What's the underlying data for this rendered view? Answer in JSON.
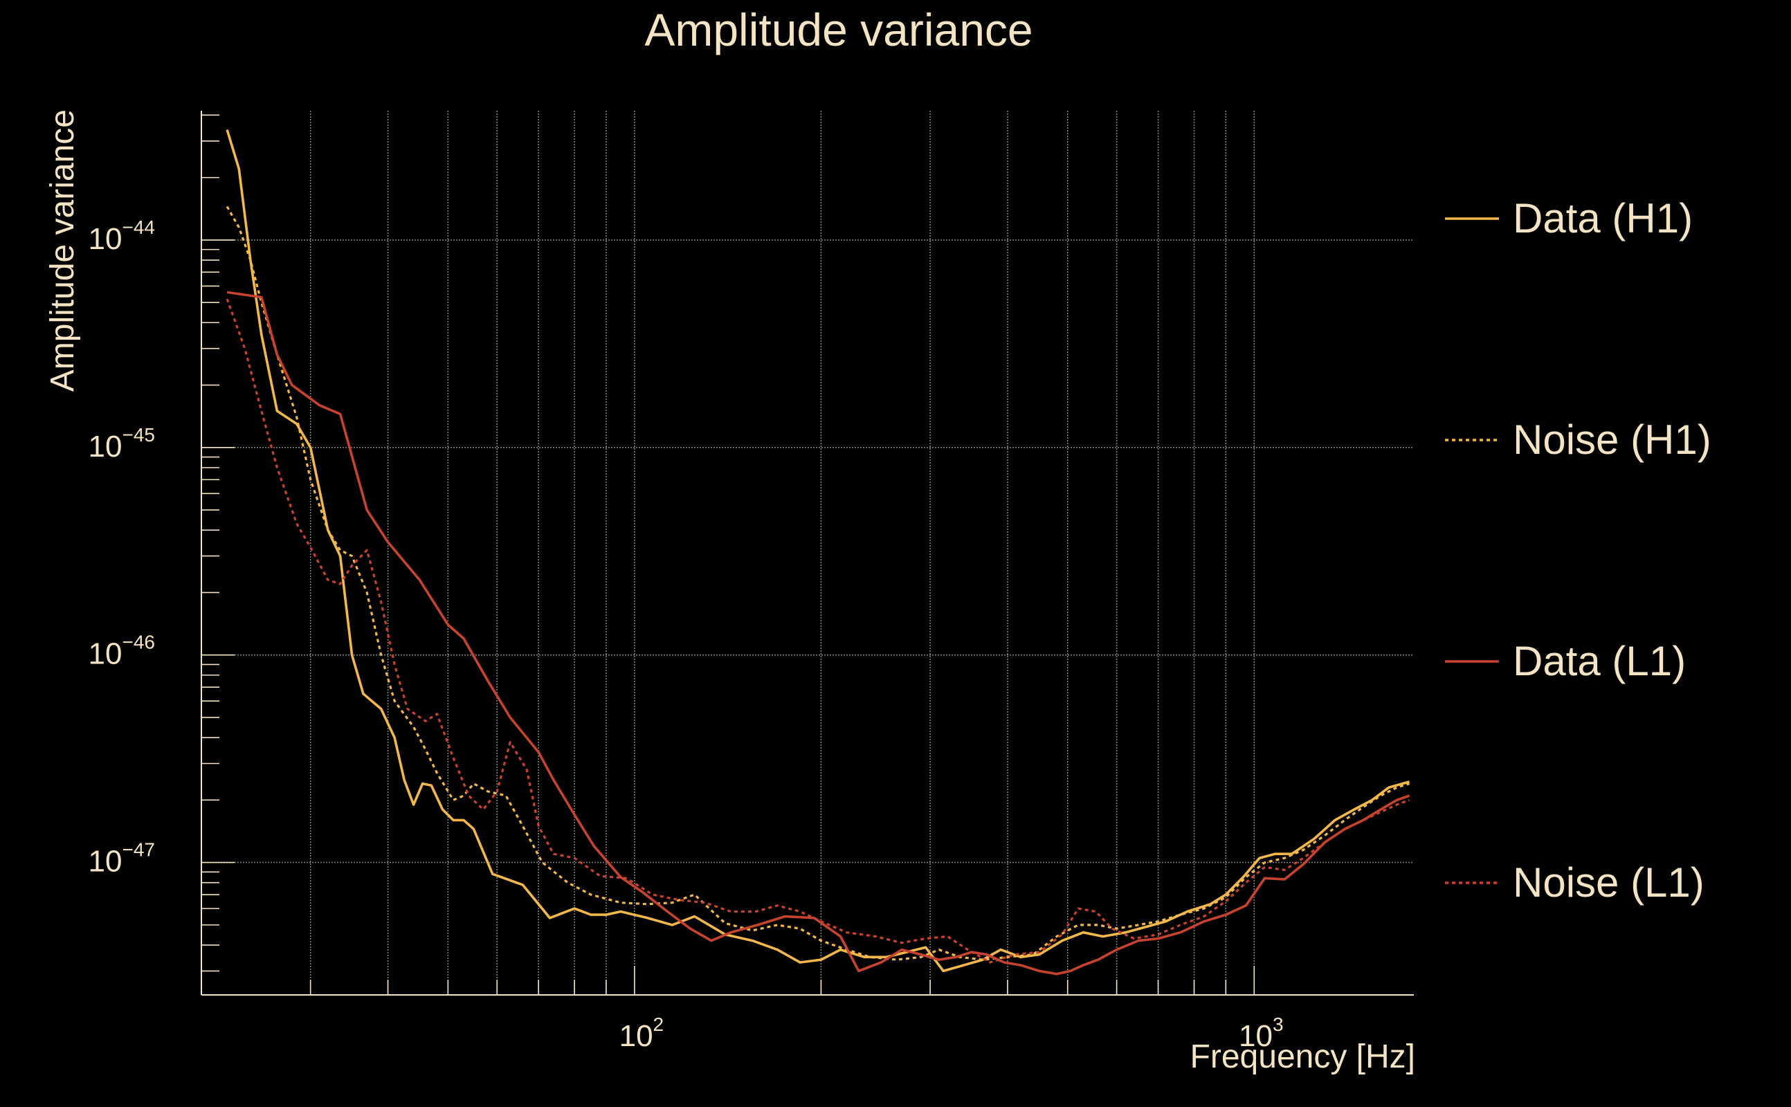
{
  "chart_data": {
    "type": "line",
    "title": "Amplitude variance",
    "xlabel": "Frequency [Hz]",
    "ylabel": "Amplitude variance",
    "xscale": "log",
    "yscale": "log",
    "xlim": [
      20,
      1810
    ],
    "ylim": [
      2.3e-48,
      4.2e-44
    ],
    "grid": true,
    "legend_position": "right",
    "colors": {
      "background": "#000000",
      "text": "#f4e4c4",
      "axis": "#f4e4c4",
      "grid": "#aaaaaa"
    },
    "x_ticks": [
      {
        "value": 100,
        "base": "10",
        "exp": "2"
      },
      {
        "value": 1000,
        "base": "10",
        "exp": "3"
      }
    ],
    "y_ticks": [
      {
        "value": 1e-44,
        "base": "10",
        "exp": "−44"
      },
      {
        "value": 1e-45,
        "base": "10",
        "exp": "−45"
      },
      {
        "value": 1e-46,
        "base": "10",
        "exp": "−46"
      },
      {
        "value": 1e-47,
        "base": "10",
        "exp": "−47"
      }
    ],
    "series": [
      {
        "name": "Data (H1)",
        "color": "#f2b84b",
        "dash": "solid",
        "points": [
          [
            22,
            3.4e-44
          ],
          [
            23,
            2.2e-44
          ],
          [
            24,
            8e-45
          ],
          [
            25,
            3.5e-45
          ],
          [
            26.5,
            1.5e-45
          ],
          [
            28.5,
            1.3e-45
          ],
          [
            30,
            1e-45
          ],
          [
            32,
            4e-46
          ],
          [
            33.5,
            3e-46
          ],
          [
            35,
            1e-46
          ],
          [
            36.5,
            6.5e-47
          ],
          [
            39,
            5.5e-47
          ],
          [
            41,
            4e-47
          ],
          [
            42.5,
            2.5e-47
          ],
          [
            44,
            1.9e-47
          ],
          [
            45.5,
            2.4e-47
          ],
          [
            47,
            2.35e-47
          ],
          [
            49,
            1.8e-47
          ],
          [
            51,
            1.6e-47
          ],
          [
            53,
            1.6e-47
          ],
          [
            55,
            1.45e-47
          ],
          [
            59,
            8.8e-48
          ],
          [
            66,
            7.8e-48
          ],
          [
            73,
            5.4e-48
          ],
          [
            80,
            6e-48
          ],
          [
            85,
            5.6e-48
          ],
          [
            90,
            5.6e-48
          ],
          [
            95,
            5.8e-48
          ],
          [
            105,
            5.4e-48
          ],
          [
            115,
            5e-48
          ],
          [
            125,
            5.5e-48
          ],
          [
            140,
            4.5e-48
          ],
          [
            155,
            4.2e-48
          ],
          [
            170,
            3.8e-48
          ],
          [
            185,
            3.3e-48
          ],
          [
            200,
            3.4e-48
          ],
          [
            215,
            3.8e-48
          ],
          [
            235,
            3.5e-48
          ],
          [
            255,
            3.5e-48
          ],
          [
            275,
            3.7e-48
          ],
          [
            295,
            3.9e-48
          ],
          [
            315,
            3e-48
          ],
          [
            340,
            3.2e-48
          ],
          [
            365,
            3.4e-48
          ],
          [
            390,
            3.8e-48
          ],
          [
            420,
            3.5e-48
          ],
          [
            450,
            3.6e-48
          ],
          [
            490,
            4.2e-48
          ],
          [
            530,
            4.6e-48
          ],
          [
            570,
            4.4e-48
          ],
          [
            620,
            4.6e-48
          ],
          [
            670,
            4.9e-48
          ],
          [
            720,
            5.2e-48
          ],
          [
            780,
            5.8e-48
          ],
          [
            850,
            6.3e-48
          ],
          [
            900,
            7e-48
          ],
          [
            960,
            8.5e-48
          ],
          [
            1020,
            1.05e-47
          ],
          [
            1080,
            1.1e-47
          ],
          [
            1150,
            1.1e-47
          ],
          [
            1250,
            1.3e-47
          ],
          [
            1350,
            1.6e-47
          ],
          [
            1450,
            1.8e-47
          ],
          [
            1550,
            2e-47
          ],
          [
            1650,
            2.3e-47
          ],
          [
            1780,
            2.45e-47
          ]
        ]
      },
      {
        "name": "Noise (H1)",
        "color": "#f2b84b",
        "dash": "dotted",
        "points": [
          [
            22,
            1.45e-44
          ],
          [
            23,
            1.15e-44
          ],
          [
            24,
            8e-45
          ],
          [
            25,
            5e-45
          ],
          [
            26.5,
            2.8e-45
          ],
          [
            28.5,
            1.4e-45
          ],
          [
            30,
            7e-46
          ],
          [
            32,
            4e-46
          ],
          [
            33.5,
            3.2e-46
          ],
          [
            35,
            3e-46
          ],
          [
            37,
            2e-46
          ],
          [
            39,
            1e-46
          ],
          [
            41,
            6e-47
          ],
          [
            44,
            4.5e-47
          ],
          [
            46,
            3.5e-47
          ],
          [
            48,
            2.7e-47
          ],
          [
            51,
            2e-47
          ],
          [
            53,
            2.1e-47
          ],
          [
            55,
            2.4e-47
          ],
          [
            58,
            2.2e-47
          ],
          [
            62,
            2.1e-47
          ],
          [
            66,
            1.5e-47
          ],
          [
            71,
            1e-47
          ],
          [
            78,
            8e-48
          ],
          [
            85,
            7e-48
          ],
          [
            95,
            6.4e-48
          ],
          [
            105,
            6.3e-48
          ],
          [
            115,
            6.4e-48
          ],
          [
            125,
            7e-48
          ],
          [
            140,
            5.1e-48
          ],
          [
            155,
            4.7e-48
          ],
          [
            170,
            5e-48
          ],
          [
            185,
            4.8e-48
          ],
          [
            200,
            4.2e-48
          ],
          [
            220,
            3.8e-48
          ],
          [
            240,
            3.5e-48
          ],
          [
            265,
            3.4e-48
          ],
          [
            290,
            3.5e-48
          ],
          [
            310,
            3.8e-48
          ],
          [
            335,
            3.5e-48
          ],
          [
            365,
            3.4e-48
          ],
          [
            400,
            3.5e-48
          ],
          [
            440,
            3.6e-48
          ],
          [
            480,
            4.4e-48
          ],
          [
            520,
            5e-48
          ],
          [
            560,
            5e-48
          ],
          [
            600,
            4.8e-48
          ],
          [
            650,
            5e-48
          ],
          [
            700,
            5.2e-48
          ],
          [
            760,
            5.6e-48
          ],
          [
            830,
            6e-48
          ],
          [
            900,
            6.8e-48
          ],
          [
            970,
            8.5e-48
          ],
          [
            1040,
            1e-47
          ],
          [
            1120,
            1.05e-47
          ],
          [
            1200,
            1.15e-47
          ],
          [
            1300,
            1.35e-47
          ],
          [
            1400,
            1.6e-47
          ],
          [
            1500,
            1.85e-47
          ],
          [
            1600,
            2.1e-47
          ],
          [
            1700,
            2.3e-47
          ],
          [
            1780,
            2.4e-47
          ]
        ]
      },
      {
        "name": "Data (L1)",
        "color": "#c84230",
        "dash": "solid",
        "points": [
          [
            22,
            5.6e-45
          ],
          [
            25,
            5.3e-45
          ],
          [
            26.5,
            2.8e-45
          ],
          [
            28,
            2e-45
          ],
          [
            31,
            1.6e-45
          ],
          [
            33.5,
            1.45e-45
          ],
          [
            37,
            5e-46
          ],
          [
            40,
            3.5e-46
          ],
          [
            45,
            2.3e-46
          ],
          [
            50,
            1.4e-46
          ],
          [
            53,
            1.2e-46
          ],
          [
            58,
            7.5e-47
          ],
          [
            63,
            5e-47
          ],
          [
            70,
            3.4e-47
          ],
          [
            74,
            2.5e-47
          ],
          [
            80,
            1.7e-47
          ],
          [
            86,
            1.2e-47
          ],
          [
            95,
            8.5e-48
          ],
          [
            103,
            7.2e-48
          ],
          [
            113,
            5.8e-48
          ],
          [
            123,
            4.8e-48
          ],
          [
            133,
            4.2e-48
          ],
          [
            143,
            4.6e-48
          ],
          [
            158,
            5e-48
          ],
          [
            175,
            5.5e-48
          ],
          [
            195,
            5.4e-48
          ],
          [
            215,
            4.4e-48
          ],
          [
            230,
            3e-48
          ],
          [
            250,
            3.3e-48
          ],
          [
            270,
            3.8e-48
          ],
          [
            290,
            3.6e-48
          ],
          [
            310,
            3.4e-48
          ],
          [
            330,
            3.5e-48
          ],
          [
            350,
            3.7e-48
          ],
          [
            370,
            3.6e-48
          ],
          [
            395,
            3.3e-48
          ],
          [
            420,
            3.2e-48
          ],
          [
            450,
            3e-48
          ],
          [
            480,
            2.9e-48
          ],
          [
            505,
            3e-48
          ],
          [
            530,
            3.2e-48
          ],
          [
            560,
            3.4e-48
          ],
          [
            600,
            3.8e-48
          ],
          [
            650,
            4.2e-48
          ],
          [
            700,
            4.3e-48
          ],
          [
            760,
            4.6e-48
          ],
          [
            830,
            5.2e-48
          ],
          [
            900,
            5.6e-48
          ],
          [
            970,
            6.2e-48
          ],
          [
            1040,
            8.4e-48
          ],
          [
            1120,
            8.3e-48
          ],
          [
            1200,
            9.8e-48
          ],
          [
            1300,
            1.25e-47
          ],
          [
            1400,
            1.45e-47
          ],
          [
            1500,
            1.6e-47
          ],
          [
            1600,
            1.8e-47
          ],
          [
            1700,
            2e-47
          ],
          [
            1780,
            2.1e-47
          ]
        ]
      },
      {
        "name": "Noise (L1)",
        "color": "#c84230",
        "dash": "dotted",
        "points": [
          [
            22,
            5.2e-45
          ],
          [
            23.5,
            3e-45
          ],
          [
            25,
            1.5e-45
          ],
          [
            26.5,
            8e-46
          ],
          [
            28.5,
            4.3e-46
          ],
          [
            30,
            3.3e-46
          ],
          [
            32,
            2.3e-46
          ],
          [
            33.5,
            2.2e-46
          ],
          [
            35,
            2.7e-46
          ],
          [
            37,
            3.2e-46
          ],
          [
            39,
            1.8e-46
          ],
          [
            41,
            9e-47
          ],
          [
            43,
            5.5e-47
          ],
          [
            46,
            4.8e-47
          ],
          [
            48,
            5.2e-47
          ],
          [
            51,
            3.2e-47
          ],
          [
            54,
            2.1e-47
          ],
          [
            57,
            1.8e-47
          ],
          [
            60,
            2.2e-47
          ],
          [
            63,
            3.8e-47
          ],
          [
            67,
            2.8e-47
          ],
          [
            70,
            1.5e-47
          ],
          [
            74,
            1.1e-47
          ],
          [
            80,
            1.05e-47
          ],
          [
            88,
            8.6e-48
          ],
          [
            97,
            8.4e-48
          ],
          [
            107,
            7e-48
          ],
          [
            118,
            6.6e-48
          ],
          [
            130,
            6.4e-48
          ],
          [
            143,
            5.8e-48
          ],
          [
            157,
            5.8e-48
          ],
          [
            170,
            6.2e-48
          ],
          [
            185,
            5.8e-48
          ],
          [
            200,
            5.2e-48
          ],
          [
            220,
            4.6e-48
          ],
          [
            245,
            4.4e-48
          ],
          [
            270,
            4.1e-48
          ],
          [
            295,
            4.3e-48
          ],
          [
            320,
            4.4e-48
          ],
          [
            345,
            3.8e-48
          ],
          [
            375,
            3.3e-48
          ],
          [
            410,
            3.6e-48
          ],
          [
            450,
            3.7e-48
          ],
          [
            490,
            4.5e-48
          ],
          [
            520,
            6e-48
          ],
          [
            555,
            5.8e-48
          ],
          [
            590,
            4.8e-48
          ],
          [
            640,
            4.3e-48
          ],
          [
            700,
            4.5e-48
          ],
          [
            760,
            5e-48
          ],
          [
            830,
            5.5e-48
          ],
          [
            900,
            6.5e-48
          ],
          [
            970,
            8e-48
          ],
          [
            1040,
            9.5e-48
          ],
          [
            1120,
            9.2e-48
          ],
          [
            1200,
            1.05e-47
          ],
          [
            1300,
            1.25e-47
          ],
          [
            1400,
            1.45e-47
          ],
          [
            1500,
            1.6e-47
          ],
          [
            1600,
            1.75e-47
          ],
          [
            1700,
            1.9e-47
          ],
          [
            1780,
            2e-47
          ]
        ]
      }
    ]
  }
}
